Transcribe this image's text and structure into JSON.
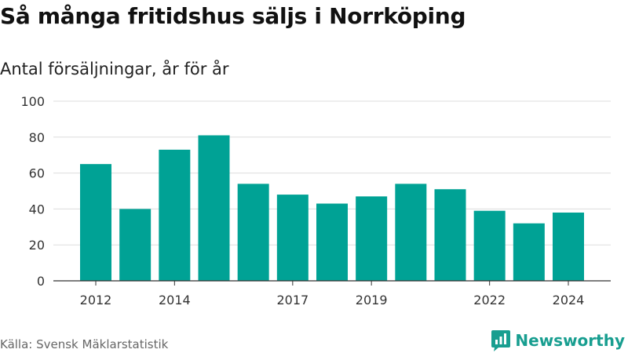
{
  "title": "Så många fritidshus säljs i Norrköping",
  "subtitle": "Antal försäljningar, år för år",
  "source": "Källa: Svensk Mäklarstatistik",
  "brand": {
    "name": "Newsworthy",
    "icon": "bar-chart-logo-icon"
  },
  "colors": {
    "bar": "#00a295",
    "brand": "#189e90",
    "grid": "#dddddd",
    "axis": "#333333"
  },
  "chart_data": {
    "type": "bar",
    "categories": [
      "2012",
      "2013",
      "2014",
      "2015",
      "2016",
      "2017",
      "2018",
      "2019",
      "2020",
      "2021",
      "2022",
      "2023",
      "2024"
    ],
    "values": [
      65,
      40,
      73,
      81,
      54,
      48,
      43,
      47,
      54,
      51,
      39,
      32,
      38
    ],
    "x_tick_labels": [
      "2012",
      "2014",
      "2017",
      "2019",
      "2022",
      "2024"
    ],
    "y_ticks": [
      0,
      20,
      40,
      60,
      80,
      100
    ],
    "ylim": [
      0,
      100
    ],
    "grid": true,
    "legend": "none"
  }
}
